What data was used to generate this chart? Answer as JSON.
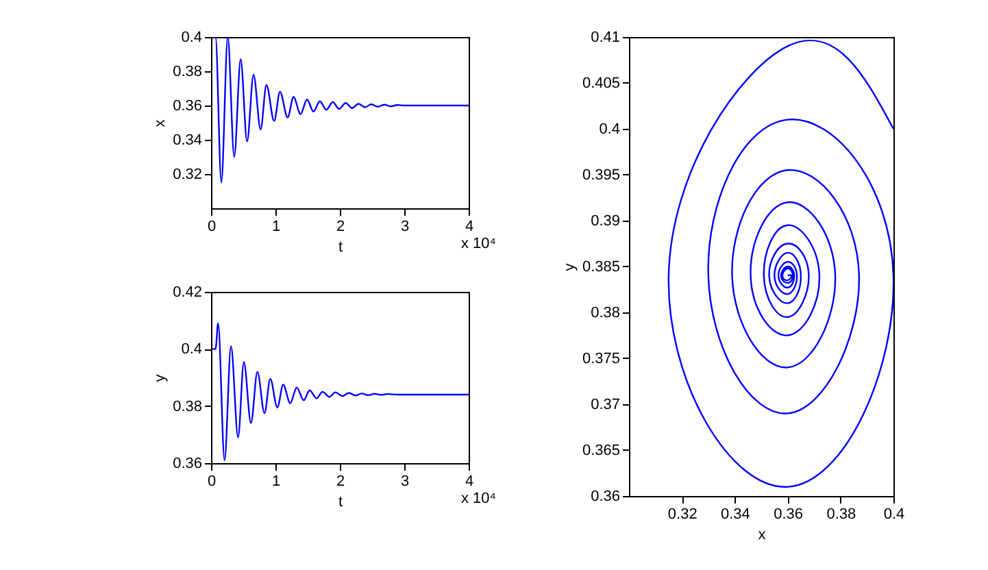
{
  "chart_data": [
    {
      "type": "line",
      "xlabel": "t",
      "ylabel": "x",
      "xlim": [
        0,
        4
      ],
      "xticks": [
        0,
        1,
        2,
        3,
        4
      ],
      "ylim": [
        0.3,
        0.4
      ],
      "yticks": [
        0.32,
        0.34,
        0.36,
        0.38,
        0.4
      ],
      "grid": false,
      "annotations": [
        "x 10⁴"
      ],
      "x": [
        0,
        0.07,
        0.16,
        0.26,
        0.36,
        0.46,
        0.56,
        0.66,
        0.77,
        0.86,
        0.98,
        1.07,
        1.19,
        1.28,
        1.39,
        1.49,
        1.59,
        1.69,
        1.79,
        1.89,
        1.99,
        2.09,
        2.19,
        2.29,
        2.39,
        2.49,
        2.59,
        2.69,
        2.79,
        2.89,
        3.0,
        4.0
      ],
      "series": [
        {
          "color": "#0000ff",
          "line_style": "solid",
          "values": [
            0.4,
            0.4,
            0.315,
            0.4,
            0.33,
            0.387,
            0.339,
            0.378,
            0.346,
            0.372,
            0.351,
            0.368,
            0.353,
            0.365,
            0.355,
            0.3635,
            0.3565,
            0.3625,
            0.3575,
            0.362,
            0.358,
            0.3615,
            0.3585,
            0.361,
            0.359,
            0.3607,
            0.3593,
            0.3605,
            0.3595,
            0.3603,
            0.36,
            0.36
          ]
        }
      ]
    },
    {
      "type": "line",
      "xlabel": "t",
      "ylabel": "y",
      "xlim": [
        0,
        4
      ],
      "xticks": [
        0,
        1,
        2,
        3,
        4
      ],
      "ylim": [
        0.36,
        0.42
      ],
      "yticks": [
        0.36,
        0.38,
        0.4,
        0.42
      ],
      "grid": false,
      "annotations": [
        "x 10⁴"
      ],
      "x": [
        0,
        0.07,
        0.11,
        0.21,
        0.31,
        0.42,
        0.51,
        0.62,
        0.72,
        0.83,
        0.92,
        1.03,
        1.12,
        1.23,
        1.33,
        1.44,
        1.53,
        1.64,
        1.73,
        1.84,
        1.93,
        2.04,
        2.14,
        2.24,
        2.34,
        2.44,
        2.54,
        2.64,
        2.74,
        2.9,
        4.0
      ],
      "series": [
        {
          "color": "#0000ff",
          "line_style": "solid",
          "values": [
            0.4,
            0.4,
            0.409,
            0.361,
            0.401,
            0.369,
            0.3955,
            0.374,
            0.392,
            0.3775,
            0.3895,
            0.3795,
            0.3875,
            0.381,
            0.3865,
            0.382,
            0.3855,
            0.3827,
            0.385,
            0.3832,
            0.3848,
            0.3835,
            0.3846,
            0.3837,
            0.3844,
            0.3838,
            0.3843,
            0.3839,
            0.3842,
            0.384,
            0.384
          ]
        }
      ]
    },
    {
      "type": "line",
      "xlabel": "x",
      "ylabel": "y",
      "xlim": [
        0.3,
        0.4
      ],
      "xticks": [
        0.32,
        0.34,
        0.36,
        0.38,
        0.4
      ],
      "ylim": [
        0.36,
        0.41
      ],
      "yticks": [
        0.36,
        0.365,
        0.37,
        0.375,
        0.38,
        0.385,
        0.39,
        0.395,
        0.4,
        0.405,
        0.41
      ],
      "grid": false,
      "x": [
        0.4,
        0.36,
        0.315,
        0.36,
        0.4,
        0.36,
        0.33,
        0.36,
        0.387,
        0.36,
        0.339,
        0.36,
        0.378,
        0.36,
        0.346,
        0.36,
        0.372,
        0.36,
        0.351,
        0.36,
        0.368,
        0.36,
        0.353,
        0.36,
        0.365,
        0.36,
        0.355,
        0.36,
        0.3635,
        0.36,
        0.3565,
        0.36,
        0.3625,
        0.36,
        0.3575,
        0.36,
        0.362,
        0.36,
        0.358,
        0.36,
        0.3615,
        0.36
      ],
      "series": [
        {
          "color": "#0000ff",
          "line_style": "solid",
          "values": [
            0.4,
            0.409,
            0.384,
            0.361,
            0.384,
            0.401,
            0.384,
            0.369,
            0.384,
            0.3955,
            0.384,
            0.374,
            0.384,
            0.392,
            0.384,
            0.3775,
            0.384,
            0.3895,
            0.384,
            0.3795,
            0.384,
            0.3875,
            0.384,
            0.381,
            0.384,
            0.3865,
            0.384,
            0.382,
            0.384,
            0.3855,
            0.384,
            0.3827,
            0.384,
            0.385,
            0.384,
            0.3832,
            0.384,
            0.3848,
            0.384,
            0.3835,
            0.384,
            0.384
          ]
        }
      ]
    }
  ]
}
